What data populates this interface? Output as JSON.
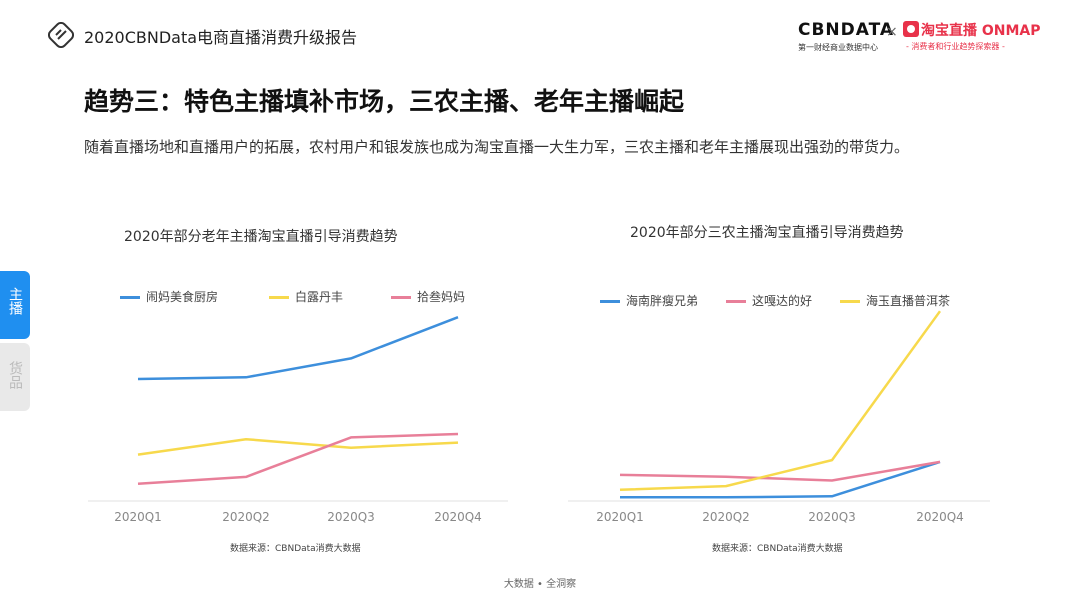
{
  "header": {
    "report_title": "2020CBNData电商直播消费升级报告",
    "brand1": "CBNDATA",
    "brand1_sub": "第一财经商业数据中心",
    "times": "×",
    "brand2": "淘宝直播 ONMAP",
    "brand2_sub": "- 消费者和行业趋势探索器 -"
  },
  "page_title": "趋势三：特色主播填补市场，三农主播、老年主播崛起",
  "subtitle": "随着直播场地和直播用户的拓展，农村用户和银发族也成为淘宝直播一大生力军，三农主播和老年主播展现出强劲的带货力。",
  "side_tabs": [
    {
      "label": "主播",
      "active": true
    },
    {
      "label": "货品",
      "active": false
    }
  ],
  "footer": "大数据 • 全洞察",
  "chart_data": [
    {
      "type": "line",
      "title": "2020年部分老年主播淘宝直播引导消费趋势",
      "categories": [
        "2020Q1",
        "2020Q2",
        "2020Q3",
        "2020Q4"
      ],
      "series": [
        {
          "name": "闹妈美食厨房",
          "color": "#3d8fdc",
          "values": [
            68,
            69,
            80,
            104
          ]
        },
        {
          "name": "白露丹丰",
          "color": "#f7d94c",
          "values": [
            24,
            33,
            28,
            31
          ]
        },
        {
          "name": "拾叁妈妈",
          "color": "#e87f99",
          "values": [
            7,
            11,
            34,
            36
          ]
        }
      ],
      "ylim": [
        -3,
        114
      ],
      "source": "数据来源：CBNData消费大数据"
    },
    {
      "type": "line",
      "title": "2020年部分三农主播淘宝直播引导消费趋势",
      "categories": [
        "2020Q1",
        "2020Q2",
        "2020Q3",
        "2020Q4"
      ],
      "series": [
        {
          "name": "海南胖瘦兄弟",
          "color": "#3d8fdc",
          "values": [
            0,
            0,
            0.5,
            19
          ]
        },
        {
          "name": "这嘎达的好",
          "color": "#e87f99",
          "values": [
            12,
            11,
            9,
            19
          ]
        },
        {
          "name": "海玉直播普洱茶",
          "color": "#f7d94c",
          "values": [
            4,
            6,
            20,
            100
          ]
        }
      ],
      "ylim": [
        -2,
        106
      ],
      "source": "数据来源：CBNData消费大数据"
    }
  ]
}
